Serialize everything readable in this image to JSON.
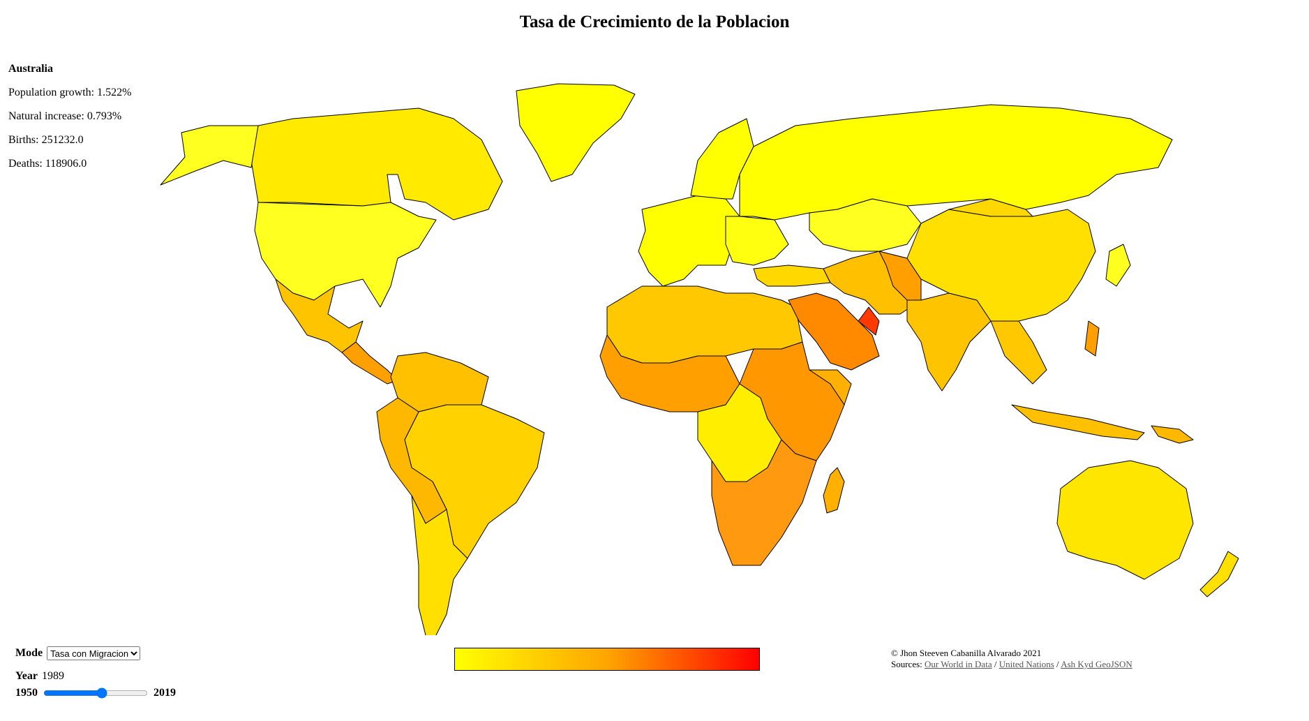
{
  "title": "Tasa de Crecimiento de la Poblacion",
  "info": {
    "country": "Australia",
    "growth_label": "Population growth:",
    "growth_value": "1.522%",
    "natural_label": "Natural increase:",
    "natural_value": "0.793%",
    "births_label": "Births:",
    "births_value": "251232.0",
    "deaths_label": "Deaths:",
    "deaths_value": "118906.0"
  },
  "controls": {
    "mode_label": "Mode",
    "mode_selected": "Tasa con Migracion",
    "year_label": "Year",
    "year_value": "1989",
    "year_min": "1950",
    "year_max": "2019"
  },
  "legend": {
    "color_low": "#ffff00",
    "color_mid": "#ffa500",
    "color_high": "#ff0000"
  },
  "credits": {
    "copyright": "© Jhon Steeven Cabanilla Alvarado 2021",
    "sources_label": "Sources:",
    "source_1": "Our World in Data",
    "source_2": "United Nations",
    "source_3": "Ash Kyd GeoJSON"
  },
  "colors": {
    "ocean": "#ffffff",
    "border": "#000000"
  }
}
